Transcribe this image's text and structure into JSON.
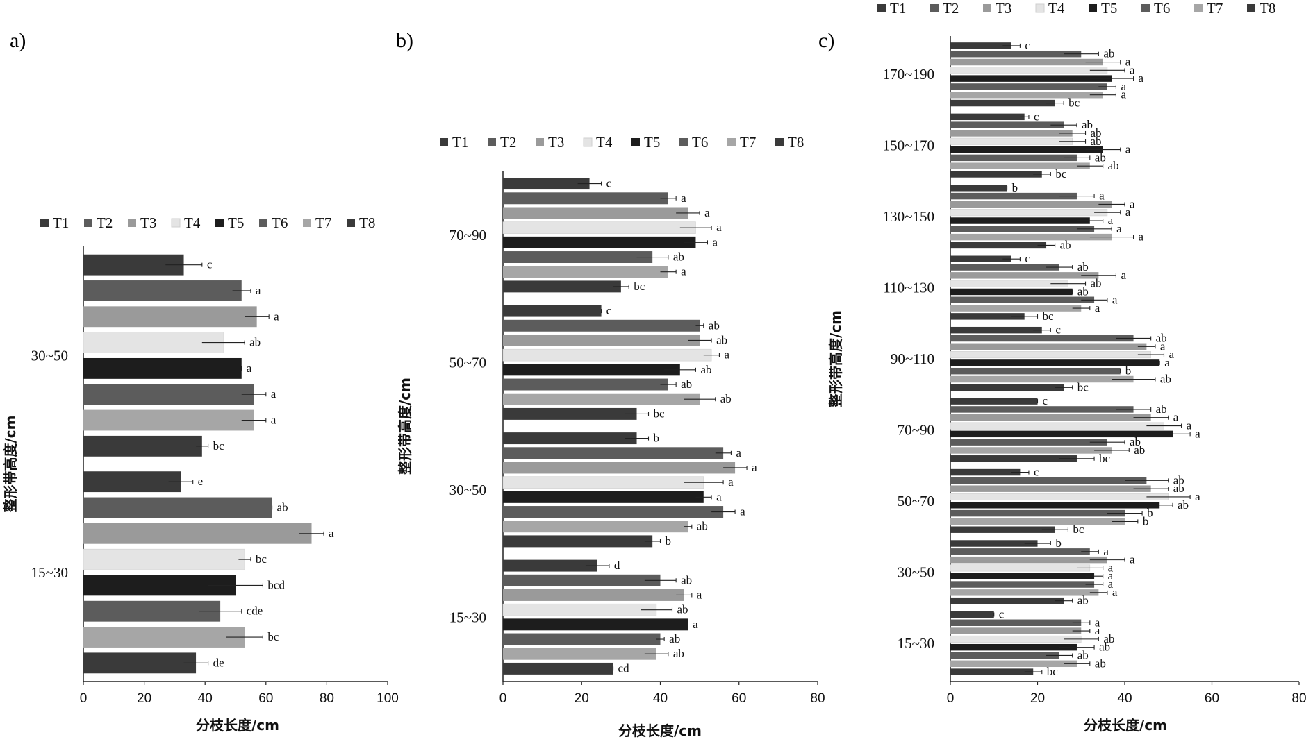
{
  "chart_data": [
    {
      "type": "bar",
      "orientation": "horizontal",
      "panel_label": "a)",
      "xlabel": "分枝长度/cm",
      "ylabel": "整形带高度/cm",
      "xlim": [
        0,
        100
      ],
      "xticks": [
        0,
        20,
        40,
        60,
        80,
        100
      ],
      "legend": [
        "T1",
        "T2",
        "T3",
        "T4",
        "T5",
        "T6",
        "T7",
        "T8"
      ],
      "legend_position": "top",
      "categories": [
        "30~50",
        "15~30"
      ],
      "series": [
        {
          "name": "T1",
          "color": "#3a3a3a",
          "values": [
            33,
            32
          ],
          "errors": [
            6,
            4
          ],
          "letters": [
            "c",
            "e"
          ]
        },
        {
          "name": "T2",
          "color": "#5c5c5c",
          "values": [
            52,
            62
          ],
          "errors": [
            3,
            0
          ],
          "letters": [
            "a",
            "ab"
          ]
        },
        {
          "name": "T3",
          "color": "#9a9a9a",
          "values": [
            57,
            75
          ],
          "errors": [
            4,
            4
          ],
          "letters": [
            "a",
            "a"
          ]
        },
        {
          "name": "T4",
          "color": "#e4e4e4",
          "values": [
            46,
            53
          ],
          "errors": [
            7,
            2
          ],
          "letters": [
            "ab",
            "bc"
          ]
        },
        {
          "name": "T5",
          "color": "#1d1d1d",
          "values": [
            52,
            50
          ],
          "errors": [
            0,
            9
          ],
          "letters": [
            "a",
            "bcd"
          ]
        },
        {
          "name": "T6",
          "color": "#5c5c5c",
          "values": [
            56,
            45
          ],
          "errors": [
            4,
            7
          ],
          "letters": [
            "a",
            "cde"
          ]
        },
        {
          "name": "T7",
          "color": "#a6a6a6",
          "values": [
            56,
            53
          ],
          "errors": [
            4,
            6
          ],
          "letters": [
            "a",
            "bc"
          ]
        },
        {
          "name": "T8",
          "color": "#3a3a3a",
          "values": [
            39,
            37
          ],
          "errors": [
            2,
            4
          ],
          "letters": [
            "bc",
            "de"
          ]
        }
      ]
    },
    {
      "type": "bar",
      "orientation": "horizontal",
      "panel_label": "b)",
      "xlabel": "分枝长度/cm",
      "ylabel": "整形带高度/cm",
      "xlim": [
        0,
        80
      ],
      "xticks": [
        0,
        20,
        40,
        60,
        80
      ],
      "legend": [
        "T1",
        "T2",
        "T3",
        "T4",
        "T5",
        "T6",
        "T7",
        "T8"
      ],
      "legend_position": "top",
      "categories": [
        "70~90",
        "50~70",
        "30~50",
        "15~30"
      ],
      "series": [
        {
          "name": "T1",
          "color": "#3a3a3a",
          "values": [
            22,
            25,
            34,
            24
          ],
          "errors": [
            3,
            0,
            3,
            3
          ],
          "letters": [
            "c",
            "c",
            "b",
            "d"
          ]
        },
        {
          "name": "T2",
          "color": "#5c5c5c",
          "values": [
            42,
            50,
            56,
            40
          ],
          "errors": [
            2,
            1,
            2,
            4
          ],
          "letters": [
            "a",
            "ab",
            "a",
            "ab"
          ]
        },
        {
          "name": "T3",
          "color": "#9a9a9a",
          "values": [
            47,
            50,
            59,
            46
          ],
          "errors": [
            3,
            3,
            3,
            2
          ],
          "letters": [
            "a",
            "ab",
            "a",
            "a"
          ]
        },
        {
          "name": "T4",
          "color": "#e4e4e4",
          "values": [
            49,
            53,
            51,
            39
          ],
          "errors": [
            4,
            2,
            5,
            4
          ],
          "letters": [
            "a",
            "a",
            "a",
            "ab"
          ]
        },
        {
          "name": "T5",
          "color": "#1d1d1d",
          "values": [
            49,
            45,
            51,
            47
          ],
          "errors": [
            3,
            4,
            2,
            0
          ],
          "letters": [
            "a",
            "ab",
            "a",
            "a"
          ]
        },
        {
          "name": "T6",
          "color": "#5c5c5c",
          "values": [
            38,
            42,
            56,
            40
          ],
          "errors": [
            4,
            2,
            3,
            1
          ],
          "letters": [
            "ab",
            "ab",
            "a",
            "ab"
          ]
        },
        {
          "name": "T7",
          "color": "#a6a6a6",
          "values": [
            42,
            50,
            47,
            39
          ],
          "errors": [
            2,
            4,
            1,
            3
          ],
          "letters": [
            "a",
            "ab",
            "ab",
            "ab"
          ]
        },
        {
          "name": "T8",
          "color": "#3a3a3a",
          "values": [
            30,
            34,
            38,
            28
          ],
          "errors": [
            2,
            3,
            2,
            0
          ],
          "letters": [
            "bc",
            "bc",
            "b",
            "cd"
          ]
        }
      ]
    },
    {
      "type": "bar",
      "orientation": "horizontal",
      "panel_label": "c)",
      "xlabel": "分枝长度/cm",
      "ylabel": "整形带高度/cm",
      "xlim": [
        0,
        80
      ],
      "xticks": [
        0,
        20,
        40,
        60,
        80
      ],
      "legend": [
        "T1",
        "T2",
        "T3",
        "T4",
        "T5",
        "T6",
        "T7",
        "T8"
      ],
      "legend_position": "top",
      "categories": [
        "170~190",
        "150~170",
        "130~150",
        "110~130",
        "90~110",
        "70~90",
        "50~70",
        "30~50",
        "15~30"
      ],
      "series": [
        {
          "name": "T1",
          "color": "#3a3a3a",
          "values": [
            14,
            17,
            13,
            14,
            21,
            20,
            16,
            20,
            10
          ],
          "errors": [
            2,
            1,
            0,
            2,
            2,
            0,
            2,
            3,
            0
          ],
          "letters": [
            "c",
            "c",
            "b",
            "c",
            "c",
            "c",
            "c",
            "b",
            "c"
          ]
        },
        {
          "name": "T2",
          "color": "#5c5c5c",
          "values": [
            30,
            26,
            29,
            25,
            42,
            42,
            45,
            32,
            30
          ],
          "errors": [
            4,
            3,
            4,
            3,
            4,
            4,
            5,
            2,
            2
          ],
          "letters": [
            "ab",
            "ab",
            "a",
            "ab",
            "ab",
            "ab",
            "ab",
            "a",
            "a"
          ]
        },
        {
          "name": "T3",
          "color": "#9a9a9a",
          "values": [
            35,
            28,
            37,
            34,
            45,
            46,
            46,
            36,
            30
          ],
          "errors": [
            4,
            3,
            3,
            4,
            2,
            4,
            4,
            4,
            2
          ],
          "letters": [
            "a",
            "ab",
            "a",
            "a",
            "a",
            "a",
            "ab",
            "a",
            "a"
          ]
        },
        {
          "name": "T4",
          "color": "#e4e4e4",
          "values": [
            36,
            28,
            36,
            27,
            46,
            49,
            50,
            32,
            30
          ],
          "errors": [
            4,
            3,
            3,
            4,
            3,
            4,
            5,
            3,
            4
          ],
          "letters": [
            "a",
            "ab",
            "a",
            "ab",
            "a",
            "a",
            "a",
            "a",
            "ab"
          ]
        },
        {
          "name": "T5",
          "color": "#1d1d1d",
          "values": [
            37,
            35,
            32,
            28,
            48,
            51,
            48,
            33,
            29
          ],
          "errors": [
            5,
            4,
            3,
            0,
            0,
            4,
            3,
            2,
            4
          ],
          "letters": [
            "a",
            "a",
            "a",
            "ab",
            "a",
            "a",
            "ab",
            "a",
            "ab"
          ]
        },
        {
          "name": "T6",
          "color": "#5c5c5c",
          "values": [
            36,
            29,
            33,
            33,
            39,
            36,
            40,
            33,
            25
          ],
          "errors": [
            2,
            3,
            4,
            3,
            0,
            4,
            4,
            2,
            3
          ],
          "letters": [
            "a",
            "ab",
            "a",
            "a",
            "b",
            "ab",
            "b",
            "a",
            "ab"
          ]
        },
        {
          "name": "T7",
          "color": "#a6a6a6",
          "values": [
            35,
            32,
            37,
            30,
            42,
            37,
            40,
            34,
            29
          ],
          "errors": [
            3,
            3,
            5,
            2,
            5,
            4,
            3,
            2,
            3
          ],
          "letters": [
            "a",
            "ab",
            "a",
            "a",
            "ab",
            "ab",
            "b",
            "a",
            "ab"
          ]
        },
        {
          "name": "T8",
          "color": "#3a3a3a",
          "values": [
            24,
            21,
            22,
            17,
            26,
            29,
            24,
            26,
            19
          ],
          "errors": [
            2,
            2,
            2,
            3,
            2,
            4,
            3,
            2,
            2
          ],
          "letters": [
            "bc",
            "bc",
            "ab",
            "bc",
            "bc",
            "bc",
            "bc",
            "ab",
            "bc"
          ]
        }
      ]
    }
  ]
}
